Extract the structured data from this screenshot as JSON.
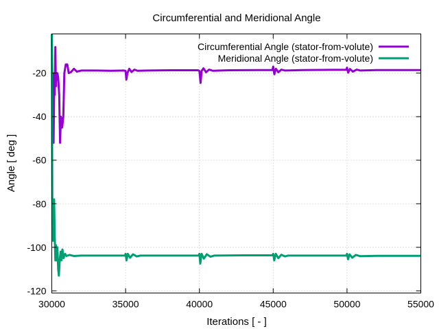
{
  "chart_data": {
    "type": "line",
    "title": "Circumferential and Meridional Angle",
    "xlabel": "Iterations [ - ]",
    "ylabel": "Angle [ deg ]",
    "xlim": [
      30000,
      55000
    ],
    "ylim": [
      -121,
      -2
    ],
    "xticks": [
      30000,
      35000,
      40000,
      45000,
      50000,
      55000
    ],
    "yticks": [
      -20,
      -40,
      -60,
      -80,
      -100,
      -120
    ],
    "grid": true,
    "legend_position": "top-right",
    "series": [
      {
        "name": "Circumferential Angle (stator-from-volute)",
        "color": "#9400d3",
        "points": [
          [
            30000,
            -2
          ],
          [
            30060,
            -35
          ],
          [
            30120,
            -52
          ],
          [
            30170,
            -20
          ],
          [
            30200,
            -30
          ],
          [
            30240,
            -8
          ],
          [
            30280,
            -26
          ],
          [
            30330,
            -20
          ],
          [
            30380,
            -20
          ],
          [
            30430,
            -22
          ],
          [
            30500,
            -30
          ],
          [
            30560,
            -52
          ],
          [
            30620,
            -40
          ],
          [
            30700,
            -45
          ],
          [
            30780,
            -40
          ],
          [
            30850,
            -20
          ],
          [
            30950,
            -16
          ],
          [
            31050,
            -16
          ],
          [
            31150,
            -20
          ],
          [
            31300,
            -19.5
          ],
          [
            31500,
            -18
          ],
          [
            31700,
            -19.3
          ],
          [
            32000,
            -18.8
          ],
          [
            33000,
            -18.8
          ],
          [
            34000,
            -18.9
          ],
          [
            34900,
            -18.8
          ],
          [
            35000,
            -19
          ],
          [
            35050,
            -23
          ],
          [
            35120,
            -20
          ],
          [
            35250,
            -18
          ],
          [
            35400,
            -19.5
          ],
          [
            35600,
            -18.4
          ],
          [
            35800,
            -18.9
          ],
          [
            36500,
            -18.8
          ],
          [
            38000,
            -18.7
          ],
          [
            39900,
            -18.7
          ],
          [
            40000,
            -19
          ],
          [
            40080,
            -24.5
          ],
          [
            40150,
            -19
          ],
          [
            40280,
            -17.8
          ],
          [
            40450,
            -19.6
          ],
          [
            40650,
            -18.4
          ],
          [
            40900,
            -18.9
          ],
          [
            42000,
            -18.7
          ],
          [
            44000,
            -18.6
          ],
          [
            44950,
            -18.6
          ],
          [
            45000,
            -17
          ],
          [
            45080,
            -20.5
          ],
          [
            45180,
            -18
          ],
          [
            45350,
            -19.6
          ],
          [
            45550,
            -18.4
          ],
          [
            45800,
            -18.8
          ],
          [
            47000,
            -18.6
          ],
          [
            49000,
            -18.5
          ],
          [
            49950,
            -18.5
          ],
          [
            50000,
            -17.5
          ],
          [
            50080,
            -19.8
          ],
          [
            50200,
            -18.1
          ],
          [
            50400,
            -19.3
          ],
          [
            50650,
            -18.4
          ],
          [
            50900,
            -18.8
          ],
          [
            52000,
            -18.6
          ],
          [
            55000,
            -18.6
          ]
        ]
      },
      {
        "name": "Meridional Angle (stator-from-volute)",
        "color": "#009e73",
        "points": [
          [
            30000,
            -2
          ],
          [
            30040,
            -90
          ],
          [
            30080,
            -97
          ],
          [
            30120,
            -85
          ],
          [
            30160,
            -78
          ],
          [
            30200,
            -95
          ],
          [
            30240,
            -106
          ],
          [
            30280,
            -99
          ],
          [
            30320,
            -106
          ],
          [
            30380,
            -100
          ],
          [
            30430,
            -110
          ],
          [
            30480,
            -113
          ],
          [
            30540,
            -106
          ],
          [
            30600,
            -102
          ],
          [
            30650,
            -106
          ],
          [
            30720,
            -101
          ],
          [
            30800,
            -105
          ],
          [
            30900,
            -103
          ],
          [
            31000,
            -104
          ],
          [
            31200,
            -103.5
          ],
          [
            31500,
            -104
          ],
          [
            32000,
            -103.8
          ],
          [
            34000,
            -103.8
          ],
          [
            34950,
            -103.8
          ],
          [
            35000,
            -103
          ],
          [
            35060,
            -106
          ],
          [
            35150,
            -103
          ],
          [
            35300,
            -104.8
          ],
          [
            35500,
            -103.2
          ],
          [
            35750,
            -104.2
          ],
          [
            36000,
            -103.8
          ],
          [
            38000,
            -103.8
          ],
          [
            39950,
            -103.8
          ],
          [
            40000,
            -103
          ],
          [
            40060,
            -107.5
          ],
          [
            40150,
            -103
          ],
          [
            40300,
            -105.2
          ],
          [
            40500,
            -103.2
          ],
          [
            40750,
            -104.3
          ],
          [
            41000,
            -103.8
          ],
          [
            43000,
            -103.7
          ],
          [
            44950,
            -103.7
          ],
          [
            45000,
            -103
          ],
          [
            45070,
            -106
          ],
          [
            45170,
            -103
          ],
          [
            45350,
            -105
          ],
          [
            45550,
            -103.4
          ],
          [
            45800,
            -104.2
          ],
          [
            46000,
            -103.8
          ],
          [
            48000,
            -103.8
          ],
          [
            49950,
            -103.8
          ],
          [
            50000,
            -103
          ],
          [
            50070,
            -105.5
          ],
          [
            50170,
            -103.2
          ],
          [
            50350,
            -104.8
          ],
          [
            50600,
            -103.5
          ],
          [
            50900,
            -104.1
          ],
          [
            52000,
            -103.9
          ],
          [
            55000,
            -103.9
          ]
        ]
      }
    ]
  }
}
